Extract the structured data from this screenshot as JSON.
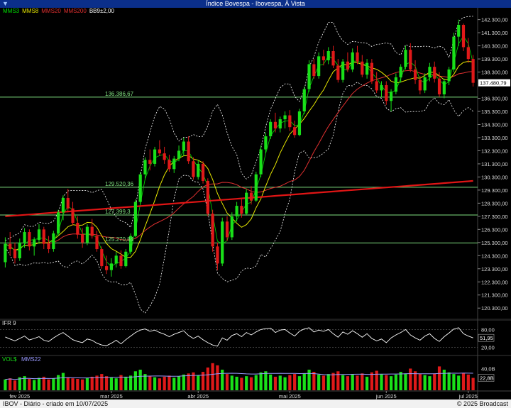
{
  "window": {
    "title": "Índice Bovespa - Ibovespa, À Vista"
  },
  "legend": [
    {
      "label": "MMS3",
      "color": "#00e000"
    },
    {
      "label": "MMS8",
      "color": "#e6e600"
    },
    {
      "label": "MMS20",
      "color": "#e03030"
    },
    {
      "label": "MMS200",
      "color": "#e03030"
    },
    {
      "label": "BB9±2,00",
      "color": "#ffffff"
    }
  ],
  "price_levels": [
    {
      "value": 136386.67,
      "label": "136.386,67"
    },
    {
      "value": 129520.36,
      "label": "129.520,36"
    },
    {
      "value": 127399.3,
      "label": "127.399,3"
    },
    {
      "value": 125270.84,
      "label": "125.270,84"
    }
  ],
  "last_price_label": "137.480,79",
  "y_axis_ticks": [
    "142.300,00",
    "141.300,00",
    "140.300,00",
    "139.300,00",
    "138.300,00",
    "136.300,00",
    "135.300,00",
    "134.300,00",
    "133.300,00",
    "132.300,00",
    "131.300,00",
    "130.300,00",
    "129.300,00",
    "128.300,00",
    "127.300,00",
    "126.300,00",
    "125.300,00",
    "124.300,00",
    "123.300,00",
    "122.300,00",
    "121.300,00",
    "120.300,00"
  ],
  "ifr": {
    "title": "IFR 9",
    "ticks": [
      "80,00",
      "20,00"
    ],
    "current": "51,95"
  },
  "volume": {
    "title": "VOL$",
    "ma_title": "MMS22",
    "tick": "40,0B",
    "current": "22,8B"
  },
  "x_axis_months": [
    "fev 2025",
    "mar 2025",
    "abr 2025",
    "mai 2025",
    "jun 2025",
    "jul 2025"
  ],
  "footer": {
    "left": "IBOV - Diário - criado em 10/07/2025",
    "right": "© 2025 Broadcast"
  },
  "colors": {
    "up": "#19e019",
    "down": "#e01919",
    "mms3": "#00e000",
    "mms8": "#e6e600",
    "mms20": "#e03030",
    "mms200": "#e01515",
    "bands": "#ffffff",
    "level_line": "#7fe07f",
    "ifr": "#ffffff",
    "vol_ma": "#9a9aff"
  },
  "chart_data": {
    "type": "candlestick",
    "x_range": [
      "2025-01-06",
      "2025-07-10"
    ],
    "y_range": [
      119500,
      143200
    ],
    "ohlc": [
      [
        123800,
        125700,
        123400,
        125200
      ],
      [
        125200,
        126100,
        124300,
        124800
      ],
      [
        124800,
        125300,
        123700,
        124100
      ],
      [
        124100,
        125600,
        123900,
        125300
      ],
      [
        125300,
        126400,
        124900,
        126100
      ],
      [
        126100,
        126300,
        124700,
        125000
      ],
      [
        125000,
        125700,
        124300,
        125500
      ],
      [
        125500,
        126700,
        125200,
        126300
      ],
      [
        126300,
        126500,
        124800,
        125200
      ],
      [
        125200,
        125800,
        124500,
        124800
      ],
      [
        124800,
        126200,
        124600,
        126000
      ],
      [
        126000,
        127800,
        125800,
        127600
      ],
      [
        127600,
        128900,
        127000,
        128700
      ],
      [
        128700,
        129400,
        127600,
        127900
      ],
      [
        127900,
        128400,
        126600,
        126800
      ],
      [
        126800,
        127300,
        125600,
        125900
      ],
      [
        125900,
        126400,
        124900,
        125300
      ],
      [
        125300,
        126700,
        125100,
        126500
      ],
      [
        126500,
        127100,
        125600,
        125800
      ],
      [
        125800,
        126200,
        124600,
        124800
      ],
      [
        124800,
        125000,
        123300,
        123500
      ],
      [
        123500,
        124300,
        122900,
        123200
      ],
      [
        123200,
        124100,
        122700,
        123700
      ],
      [
        123700,
        124600,
        123400,
        124300
      ],
      [
        124300,
        124700,
        123300,
        123500
      ],
      [
        123500,
        124800,
        123400,
        124600
      ],
      [
        124600,
        126000,
        124400,
        125800
      ],
      [
        125800,
        128600,
        125700,
        128400
      ],
      [
        128400,
        130700,
        128200,
        130500
      ],
      [
        130500,
        131800,
        130100,
        131600
      ],
      [
        131600,
        132400,
        130800,
        131300
      ],
      [
        131300,
        132600,
        131100,
        132400
      ],
      [
        132400,
        133100,
        131900,
        132100
      ],
      [
        132100,
        132600,
        131300,
        131600
      ],
      [
        131600,
        132000,
        130700,
        130900
      ],
      [
        130900,
        131900,
        130600,
        131700
      ],
      [
        131700,
        132700,
        131500,
        132300
      ],
      [
        132300,
        133300,
        131900,
        133000
      ],
      [
        133000,
        133400,
        131300,
        131500
      ],
      [
        131500,
        131800,
        130100,
        130300
      ],
      [
        130300,
        131600,
        130100,
        131300
      ],
      [
        131300,
        131500,
        129800,
        130000
      ],
      [
        130000,
        130200,
        127300,
        127500
      ],
      [
        127500,
        127800,
        124600,
        125000
      ],
      [
        125000,
        125300,
        123200,
        123700
      ],
      [
        123700,
        127200,
        123500,
        126900
      ],
      [
        126900,
        127300,
        125400,
        125700
      ],
      [
        125700,
        127600,
        125500,
        127300
      ],
      [
        127300,
        128400,
        126900,
        128100
      ],
      [
        128100,
        128600,
        127200,
        127500
      ],
      [
        127500,
        129400,
        127400,
        129100
      ],
      [
        129100,
        129600,
        128200,
        128500
      ],
      [
        128500,
        130700,
        128400,
        130500
      ],
      [
        130500,
        132700,
        130300,
        132400
      ],
      [
        132400,
        133700,
        132100,
        133400
      ],
      [
        133400,
        134700,
        133200,
        134500
      ],
      [
        134500,
        135200,
        133700,
        134000
      ],
      [
        134000,
        134900,
        133700,
        134700
      ],
      [
        134700,
        135300,
        134000,
        135000
      ],
      [
        135000,
        135400,
        133800,
        134100
      ],
      [
        134100,
        134600,
        133300,
        133500
      ],
      [
        133500,
        135500,
        133400,
        135300
      ],
      [
        135300,
        137200,
        135100,
        137000
      ],
      [
        137000,
        139200,
        136800,
        138900
      ],
      [
        138900,
        139300,
        137800,
        138000
      ],
      [
        138000,
        139800,
        137800,
        139500
      ],
      [
        139500,
        140000,
        138800,
        139200
      ],
      [
        139200,
        140200,
        138900,
        139900
      ],
      [
        139900,
        140300,
        138600,
        138800
      ],
      [
        138800,
        139300,
        137500,
        137700
      ],
      [
        137700,
        139300,
        137500,
        139100
      ],
      [
        139100,
        139800,
        138300,
        138500
      ],
      [
        138500,
        140100,
        138300,
        139800
      ],
      [
        139800,
        140300,
        138900,
        139100
      ],
      [
        139100,
        139600,
        137900,
        138100
      ],
      [
        138100,
        139300,
        137800,
        139000
      ],
      [
        139000,
        139300,
        137400,
        137600
      ],
      [
        137600,
        138300,
        136700,
        136900
      ],
      [
        136900,
        137600,
        136400,
        137300
      ],
      [
        137300,
        137600,
        135800,
        136100
      ],
      [
        136100,
        137000,
        135300,
        136800
      ],
      [
        136800,
        138200,
        136600,
        137900
      ],
      [
        137900,
        138900,
        137500,
        138700
      ],
      [
        138700,
        140300,
        138500,
        140000
      ],
      [
        140000,
        140500,
        138300,
        138500
      ],
      [
        138500,
        139200,
        137400,
        137700
      ],
      [
        137700,
        138000,
        136600,
        136900
      ],
      [
        136900,
        138200,
        136700,
        137900
      ],
      [
        137900,
        139000,
        137600,
        138700
      ],
      [
        138700,
        139100,
        137500,
        137800
      ],
      [
        137800,
        138300,
        136400,
        136600
      ],
      [
        136600,
        137800,
        136300,
        137600
      ],
      [
        137600,
        138700,
        137300,
        138500
      ],
      [
        138500,
        141300,
        138300,
        141000
      ],
      [
        141000,
        142300,
        140300,
        141900
      ],
      [
        141900,
        142000,
        139900,
        140200
      ],
      [
        140200,
        140900,
        139000,
        139300
      ],
      [
        139300,
        139600,
        137200,
        137480.79
      ]
    ],
    "volume_b": [
      20,
      22,
      18,
      24,
      26,
      21,
      19,
      23,
      25,
      20,
      22,
      28,
      32,
      24,
      22,
      21,
      20,
      23,
      25,
      27,
      30,
      26,
      24,
      22,
      28,
      25,
      27,
      35,
      38,
      30,
      26,
      24,
      22,
      25,
      27,
      23,
      26,
      29,
      31,
      33,
      28,
      34,
      42,
      50,
      46,
      38,
      30,
      27,
      25,
      23,
      26,
      24,
      28,
      33,
      35,
      29,
      25,
      27,
      24,
      28,
      30,
      26,
      31,
      38,
      34,
      29,
      27,
      30,
      32,
      35,
      28,
      26,
      29,
      27,
      31,
      25,
      33,
      36,
      30,
      28,
      26,
      29,
      34,
      31,
      40,
      35,
      30,
      28,
      26,
      31,
      44,
      38,
      33,
      30,
      27,
      32,
      29,
      22.8
    ],
    "ifr": [
      55,
      48,
      42,
      50,
      58,
      45,
      50,
      56,
      44,
      40,
      52,
      62,
      70,
      58,
      46,
      40,
      36,
      48,
      44,
      34,
      28,
      26,
      34,
      44,
      32,
      46,
      58,
      70,
      78,
      82,
      74,
      78,
      70,
      64,
      56,
      64,
      70,
      76,
      60,
      50,
      58,
      46,
      36,
      28,
      24,
      52,
      44,
      60,
      66,
      56,
      70,
      62,
      72,
      80,
      83,
      85,
      70,
      78,
      80,
      68,
      58,
      74,
      82,
      86,
      72,
      78,
      74,
      80,
      66,
      54,
      72,
      64,
      76,
      66,
      54,
      66,
      50,
      42,
      48,
      36,
      52,
      62,
      70,
      80,
      62,
      52,
      44,
      58,
      66,
      50,
      40,
      56,
      68,
      82,
      86,
      66,
      58,
      51.95
    ]
  }
}
